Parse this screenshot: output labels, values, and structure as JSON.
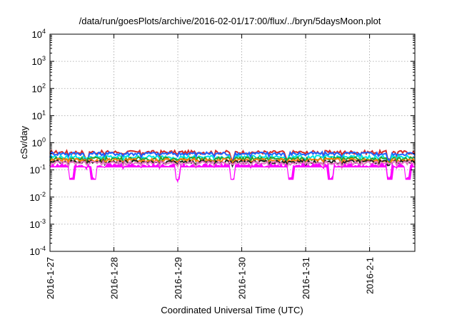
{
  "chart_data": {
    "type": "line",
    "title": "/data/run/goesPlots/archive/2016-02-01/17:00/flux/../bryn/5daysMoon.plot",
    "xlabel": "Coordinated Universal Time (UTC)",
    "ylabel": "cSv/day",
    "yscale": "log",
    "ylim": [
      0.0001,
      10000
    ],
    "xlim": [
      "2016-01-27",
      "2016-02-01T17:00"
    ],
    "grid": true,
    "legend": "none",
    "x_ticks": [
      "2016-1-27",
      "2016-1-28",
      "2016-1-29",
      "2016-1-30",
      "2016-1-31",
      "2016-2-1"
    ],
    "y_ticks": [
      {
        "base": "10",
        "exp": "-4",
        "value": 0.0001
      },
      {
        "base": "10",
        "exp": "-3",
        "value": 0.001
      },
      {
        "base": "10",
        "exp": "-2",
        "value": 0.01
      },
      {
        "base": "10",
        "exp": "-1",
        "value": 0.1
      },
      {
        "base": "10",
        "exp": "0",
        "value": 1
      },
      {
        "base": "10",
        "exp": "1",
        "value": 10
      },
      {
        "base": "10",
        "exp": "2",
        "value": 100
      },
      {
        "base": "10",
        "exp": "3",
        "value": 1000
      },
      {
        "base": "10",
        "exp": "4",
        "value": 10000
      }
    ],
    "series": [
      {
        "color": "#d62728",
        "level": 0.45,
        "dips": [
          0.1,
          0.5,
          0.65,
          0.93
        ],
        "dip_depth": 0.6
      },
      {
        "color": "#1f5fff",
        "level": 0.4,
        "dips": [
          0.1,
          0.5,
          0.65,
          0.93
        ],
        "dip_depth": 0.6
      },
      {
        "color": "#00e5e5",
        "level": 0.3,
        "dips": [
          0.5,
          0.93
        ],
        "dip_depth": 0.7
      },
      {
        "color": "#2ca02c",
        "level": 0.26,
        "dips": [
          0.93
        ],
        "dip_depth": 0.8
      },
      {
        "color": "#ff7f0e",
        "level": 0.23,
        "dips": [
          0.93
        ],
        "dip_depth": 0.8
      },
      {
        "color": "#222222",
        "level": 0.2,
        "dips": [
          0.93
        ],
        "dip_depth": 0.8
      },
      {
        "color": "#e377c2",
        "level": 0.18,
        "dips": [],
        "dip_depth": 1.0
      },
      {
        "color": "#ff00ff",
        "level": 0.15,
        "fill": true,
        "dips": [
          0.06,
          0.12,
          0.35,
          0.5,
          0.66,
          0.77,
          0.93,
          0.98
        ],
        "dip_depth": 0.35
      }
    ]
  }
}
